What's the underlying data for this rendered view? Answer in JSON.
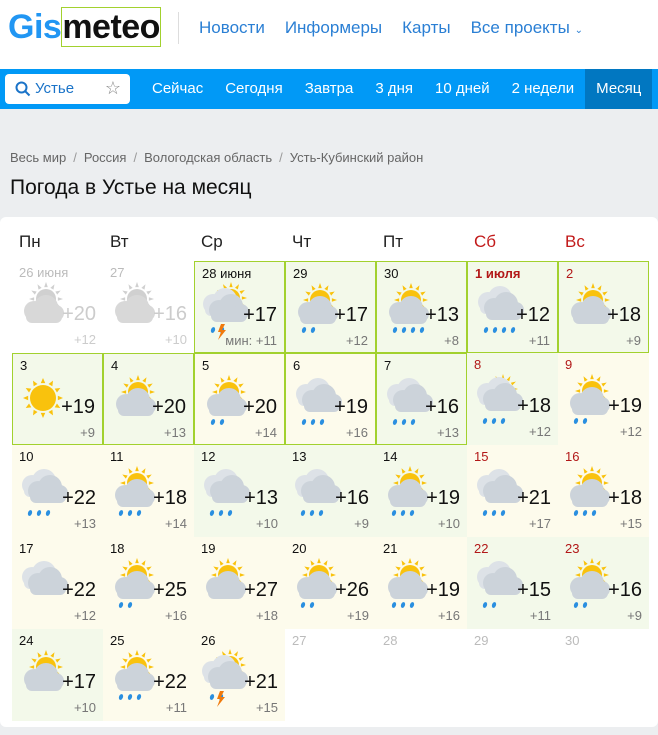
{
  "logo": {
    "part1": "Gis",
    "part2": "meteo"
  },
  "topnav": [
    "Новости",
    "Информеры",
    "Карты",
    "Все проекты"
  ],
  "search": {
    "value": "Устье",
    "icon": "search-icon",
    "fav_icon": "star-icon"
  },
  "tabs": [
    {
      "label": "Сейчас"
    },
    {
      "label": "Сегодня"
    },
    {
      "label": "Завтра"
    },
    {
      "label": "3 дня"
    },
    {
      "label": "10 дней"
    },
    {
      "label": "2 недели"
    },
    {
      "label": "Месяц",
      "active": true
    }
  ],
  "breadcrumbs": [
    "Весь мир",
    "Россия",
    "Вологодская область",
    "Усть-Кубинский район"
  ],
  "title": "Погода в Устье на месяц",
  "weekdays": [
    "Пн",
    "Вт",
    "Ср",
    "Чт",
    "Пт",
    "Сб",
    "Вс"
  ],
  "colors": {
    "accent": "#0199f6",
    "active_tab": "#0177c1",
    "weekend": "#c21a1a",
    "border_highlight": "#a2d12e"
  },
  "days": [
    {
      "date": "26 июня",
      "icon": "partly",
      "rain": 0,
      "max": "+20",
      "min": "+12",
      "past": true
    },
    {
      "date": "27",
      "icon": "partly",
      "rain": 0,
      "max": "+16",
      "min": "+10",
      "past": true
    },
    {
      "date": "28 июня",
      "icon": "storm",
      "rain": 2,
      "max": "+17",
      "min": "+11",
      "min_label": "мин:",
      "tone": "g",
      "border": true
    },
    {
      "date": "29",
      "icon": "partly",
      "rain": 2,
      "max": "+17",
      "min": "+12",
      "tone": "g",
      "border": true
    },
    {
      "date": "30",
      "icon": "partly",
      "rain": 4,
      "max": "+13",
      "min": "+8",
      "tone": "g",
      "border": true
    },
    {
      "date": "1 июля",
      "icon": "cloudy",
      "rain": 4,
      "max": "+12",
      "min": "+11",
      "tone": "g",
      "border": true,
      "weekend": true,
      "bold": true
    },
    {
      "date": "2",
      "icon": "partly",
      "rain": 0,
      "max": "+18",
      "min": "+9",
      "tone": "g",
      "border": true,
      "weekend": true
    },
    {
      "date": "3",
      "icon": "sun",
      "rain": 0,
      "max": "+19",
      "min": "+9",
      "tone": "g",
      "border": true
    },
    {
      "date": "4",
      "icon": "partly",
      "rain": 0,
      "max": "+20",
      "min": "+13",
      "tone": "g",
      "border": true
    },
    {
      "date": "5",
      "icon": "partly",
      "rain": 2,
      "max": "+20",
      "min": "+14",
      "tone": "y",
      "border": true
    },
    {
      "date": "6",
      "icon": "cloudy",
      "rain": 3,
      "max": "+19",
      "min": "+16",
      "tone": "y",
      "border": true
    },
    {
      "date": "7",
      "icon": "cloudy",
      "rain": 3,
      "max": "+16",
      "min": "+13",
      "tone": "g",
      "border": true
    },
    {
      "date": "8",
      "icon": "cloudsun",
      "rain": 3,
      "max": "+18",
      "min": "+12",
      "tone": "g",
      "weekend": true
    },
    {
      "date": "9",
      "icon": "partly",
      "rain": 2,
      "max": "+19",
      "min": "+12",
      "tone": "y",
      "weekend": true
    },
    {
      "date": "10",
      "icon": "cloudy",
      "rain": 3,
      "max": "+22",
      "min": "+13",
      "tone": "y"
    },
    {
      "date": "11",
      "icon": "partly",
      "rain": 3,
      "max": "+18",
      "min": "+14",
      "tone": "y"
    },
    {
      "date": "12",
      "icon": "cloudy",
      "rain": 3,
      "max": "+13",
      "min": "+10",
      "tone": "g"
    },
    {
      "date": "13",
      "icon": "cloudy",
      "rain": 3,
      "max": "+16",
      "min": "+9",
      "tone": "g"
    },
    {
      "date": "14",
      "icon": "partly",
      "rain": 3,
      "max": "+19",
      "min": "+10",
      "tone": "g"
    },
    {
      "date": "15",
      "icon": "cloudy",
      "rain": 3,
      "max": "+21",
      "min": "+17",
      "tone": "y",
      "weekend": true
    },
    {
      "date": "16",
      "icon": "partly",
      "rain": 3,
      "max": "+18",
      "min": "+15",
      "tone": "y",
      "weekend": true
    },
    {
      "date": "17",
      "icon": "cloudy",
      "rain": 0,
      "max": "+22",
      "min": "+12",
      "tone": "y"
    },
    {
      "date": "18",
      "icon": "partly",
      "rain": 2,
      "max": "+25",
      "min": "+16",
      "tone": "y"
    },
    {
      "date": "19",
      "icon": "partly",
      "rain": 0,
      "max": "+27",
      "min": "+18",
      "tone": "y"
    },
    {
      "date": "20",
      "icon": "partly",
      "rain": 2,
      "max": "+26",
      "min": "+19",
      "tone": "y"
    },
    {
      "date": "21",
      "icon": "partly",
      "rain": 3,
      "max": "+19",
      "min": "+16",
      "tone": "y"
    },
    {
      "date": "22",
      "icon": "cloudy",
      "rain": 2,
      "max": "+15",
      "min": "+11",
      "tone": "g",
      "weekend": true
    },
    {
      "date": "23",
      "icon": "partly",
      "rain": 2,
      "max": "+16",
      "min": "+9",
      "tone": "g",
      "weekend": true
    },
    {
      "date": "24",
      "icon": "partly",
      "rain": 0,
      "max": "+17",
      "min": "+10",
      "tone": "g"
    },
    {
      "date": "25",
      "icon": "partly",
      "rain": 3,
      "max": "+22",
      "min": "+11",
      "tone": "y"
    },
    {
      "date": "26",
      "icon": "storm",
      "rain": 2,
      "max": "+21",
      "min": "+15",
      "tone": "y"
    },
    {
      "date": "27",
      "empty": true
    },
    {
      "date": "28",
      "empty": true
    },
    {
      "date": "29",
      "empty": true
    },
    {
      "date": "30",
      "empty": true
    }
  ]
}
